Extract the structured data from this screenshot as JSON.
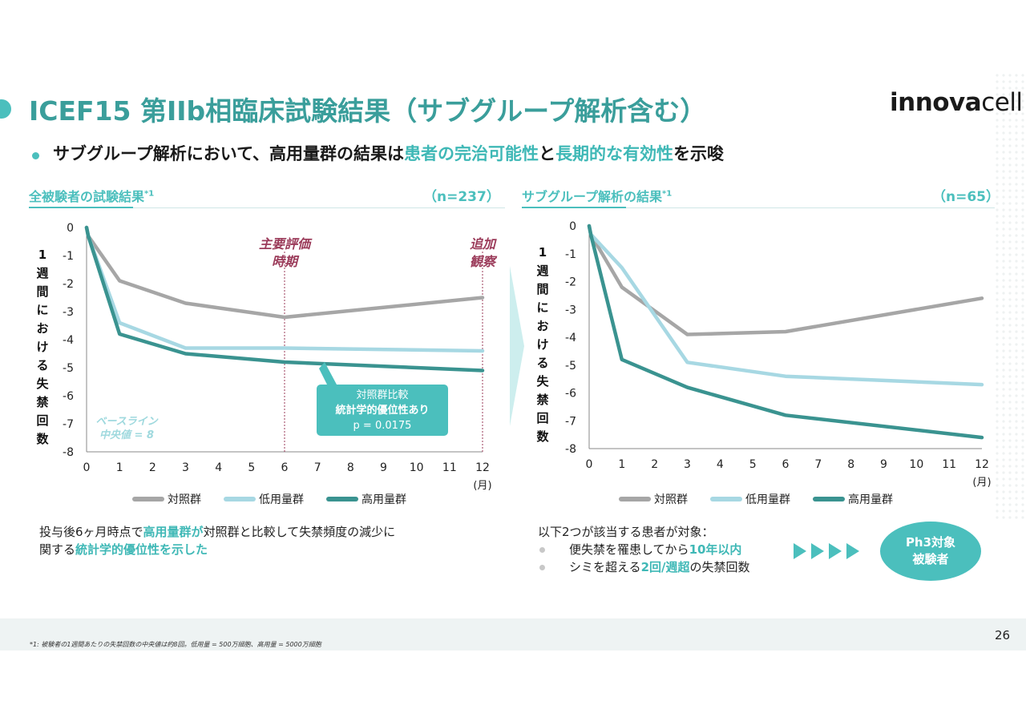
{
  "title": "ICEF15 第IIb相臨床試験結果（サブグループ解析含む）",
  "logo": {
    "bold": "innova",
    "light": "cell"
  },
  "subtitle": {
    "p1": "サブグループ解析において、高用量群の結果は",
    "h1": "患者の完治可能性",
    "p2": "と",
    "h2": "長期的な有効性",
    "p3": "を示唆"
  },
  "left_section": {
    "title": "全被験者の試験結果",
    "sup": "*1",
    "n": "（n=237）"
  },
  "right_section": {
    "title": "サブグループ解析の結果",
    "sup": "*1",
    "n": "（n=65）"
  },
  "y_axis_label_chars": [
    "1",
    "週",
    "間",
    "に",
    "お",
    "け",
    "る",
    "失",
    "禁",
    "回",
    "数"
  ],
  "x_unit": "(月)",
  "legend": {
    "control": "対照群",
    "low": "低用量群",
    "high": "高用量群"
  },
  "colors": {
    "control": "#a6a6a6",
    "low": "#a7d8e3",
    "high": "#3a9390",
    "accent": "#4bbfbd",
    "maroon": "#9b3b5a"
  },
  "left_annotations": {
    "primary_line1": "主要評価",
    "primary_line2": "時期",
    "additional_line1": "追加",
    "additional_line2": "観察",
    "baseline_line1": "ベースライン",
    "baseline_line2": "中央値 = 8",
    "callout_line1": "対照群比較",
    "callout_line2": "統計学的優位性あり",
    "callout_line3": "p = 0.0175"
  },
  "left_note": {
    "l1a": "投与後6ヶ月時点で",
    "l1b": "高用量群が",
    "l1c": "対照群と比較して失禁頻度の減少に",
    "l2a": "関する",
    "l2b": "統計学的優位性を示した"
  },
  "right_note": {
    "head": "以下2つが該当する患者が対象：",
    "b1a": "便失禁を罹患してから",
    "b1b": "10年以内",
    "b2a": "シミを超える",
    "b2b": "2回/週超",
    "b2c": "の失禁回数"
  },
  "ph3": {
    "line1": "Ph3対象",
    "line2": "被験者"
  },
  "footnote": "*1: 被験者の1週間あたりの失禁回数の中央値は約8回。低用量 = 500万細胞、高用量 = 5000万細胞",
  "page_number": "26",
  "chart_data": [
    {
      "type": "line",
      "title": "全被験者の試験結果 (n=237)",
      "xlabel": "(月)",
      "ylabel": "1週間における失禁回数",
      "x_ticks": [
        0,
        1,
        2,
        3,
        4,
        5,
        6,
        7,
        8,
        9,
        10,
        11,
        12
      ],
      "y_ticks": [
        0,
        -1,
        -2,
        -3,
        -4,
        -5,
        -6,
        -7,
        -8
      ],
      "xlim": [
        0,
        12
      ],
      "ylim": [
        -8,
        0
      ],
      "series": [
        {
          "name": "対照群",
          "key": "control",
          "x": [
            0,
            0.05,
            1,
            3,
            6,
            12
          ],
          "values": [
            0,
            -0.3,
            -1.9,
            -2.7,
            -3.2,
            -2.5
          ]
        },
        {
          "name": "低用量群",
          "key": "low",
          "x": [
            0,
            0.05,
            1,
            3,
            6,
            12
          ],
          "values": [
            0,
            -0.3,
            -3.4,
            -4.3,
            -4.3,
            -4.4
          ]
        },
        {
          "name": "高用量群",
          "key": "high",
          "x": [
            0,
            0.05,
            1,
            3,
            6,
            12
          ],
          "values": [
            0,
            -0.3,
            -3.8,
            -4.5,
            -4.8,
            -5.1
          ]
        }
      ],
      "vlines": [
        6,
        12
      ]
    },
    {
      "type": "line",
      "title": "サブグループ解析の結果 (n=65)",
      "xlabel": "(月)",
      "ylabel": "1週間における失禁回数",
      "x_ticks": [
        0,
        1,
        2,
        3,
        4,
        5,
        6,
        7,
        8,
        9,
        10,
        11,
        12
      ],
      "y_ticks": [
        0,
        -1,
        -2,
        -3,
        -4,
        -5,
        -6,
        -7,
        -8
      ],
      "xlim": [
        0,
        12
      ],
      "ylim": [
        -8,
        0
      ],
      "series": [
        {
          "name": "対照群",
          "key": "control",
          "x": [
            0,
            0.05,
            1,
            3,
            6,
            12
          ],
          "values": [
            0,
            -0.3,
            -2.2,
            -3.9,
            -3.8,
            -2.6
          ]
        },
        {
          "name": "低用量群",
          "key": "low",
          "x": [
            0,
            0.05,
            1,
            3,
            6,
            12
          ],
          "values": [
            0,
            -0.3,
            -1.5,
            -4.9,
            -5.4,
            -5.7
          ]
        },
        {
          "name": "高用量群",
          "key": "high",
          "x": [
            0,
            0.05,
            1,
            3,
            6,
            12
          ],
          "values": [
            0,
            -0.3,
            -4.8,
            -5.8,
            -6.8,
            -7.6
          ]
        }
      ]
    }
  ]
}
